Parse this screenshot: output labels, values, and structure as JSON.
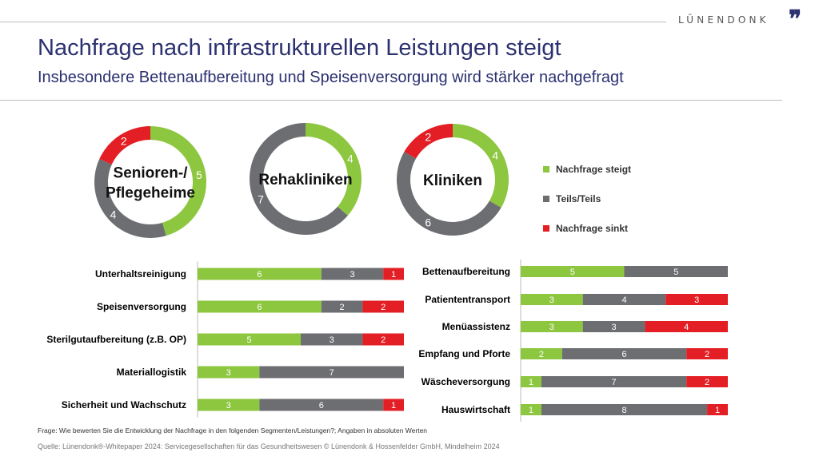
{
  "header": {
    "brand": "LÜNENDONK",
    "brand_mark": "❞",
    "title": "Nachfrage nach infrastrukturellen Leistungen steigt",
    "subtitle": "Insbesondere Bettenaufbereitung und Speisenversorgung wird stärker nachgefragt"
  },
  "colors": {
    "steigt": "#8dc63f",
    "teils": "#6d6e71",
    "sinkt": "#e31e24"
  },
  "legend": [
    {
      "key": "steigt",
      "label": "Nachfrage steigt"
    },
    {
      "key": "teils",
      "label": "Teils/Teils"
    },
    {
      "key": "sinkt",
      "label": "Nachfrage sinkt"
    }
  ],
  "chart_data": [
    {
      "type": "pie",
      "title": "Senioren-/ Pflegeheime",
      "title_lines": [
        "Senioren-/",
        "Pflegeheime"
      ],
      "slices": [
        {
          "key": "steigt",
          "label": "Nachfrage steigt",
          "value": 5
        },
        {
          "key": "teils",
          "label": "Teils/Teils",
          "value": 4
        },
        {
          "key": "sinkt",
          "label": "Nachfrage sinkt",
          "value": 2
        }
      ]
    },
    {
      "type": "pie",
      "title": "Rehakliniken",
      "title_lines": [
        "Rehakliniken"
      ],
      "slices": [
        {
          "key": "steigt",
          "label": "Nachfrage steigt",
          "value": 4
        },
        {
          "key": "teils",
          "label": "Teils/Teils",
          "value": 7
        }
      ]
    },
    {
      "type": "pie",
      "title": "Kliniken",
      "title_lines": [
        "Kliniken"
      ],
      "slices": [
        {
          "key": "steigt",
          "label": "Nachfrage steigt",
          "value": 4
        },
        {
          "key": "teils",
          "label": "Teils/Teils",
          "value": 6
        },
        {
          "key": "sinkt",
          "label": "Nachfrage sinkt",
          "value": 2
        }
      ]
    },
    {
      "type": "bar",
      "stacked": true,
      "orientation": "horizontal",
      "categories": [
        "Unterhaltsreinigung",
        "Speisenversorgung",
        "Sterilgutaufbereitung (z.B. OP)",
        "Materiallogistik",
        "Sicherheit und Wachschutz"
      ],
      "series": [
        {
          "name": "Nachfrage steigt",
          "key": "steigt",
          "values": [
            6,
            6,
            5,
            3,
            3
          ]
        },
        {
          "name": "Teils/Teils",
          "key": "teils",
          "values": [
            3,
            2,
            3,
            7,
            6
          ]
        },
        {
          "name": "Nachfrage sinkt",
          "key": "sinkt",
          "values": [
            1,
            2,
            2,
            0,
            1
          ]
        }
      ]
    },
    {
      "type": "bar",
      "stacked": true,
      "orientation": "horizontal",
      "categories": [
        "Bettenaufbereitung",
        "Patiententransport",
        "Menüassistenz",
        "Empfang und Pforte",
        "Wäscheversorgung",
        "Hauswirtschaft"
      ],
      "series": [
        {
          "name": "Nachfrage steigt",
          "key": "steigt",
          "values": [
            5,
            3,
            3,
            2,
            1,
            1
          ]
        },
        {
          "name": "Teils/Teils",
          "key": "teils",
          "values": [
            5,
            4,
            3,
            6,
            7,
            8
          ]
        },
        {
          "name": "Nachfrage sinkt",
          "key": "sinkt",
          "values": [
            0,
            3,
            4,
            2,
            2,
            1
          ]
        }
      ]
    }
  ],
  "footer": {
    "question": "Frage: Wie bewerten Sie die Entwicklung der Nachfrage in den folgenden Segmenten/Leistungen?; Angaben in absoluten Werten",
    "source": "Quelle: Lünendonk®-Whitepaper 2024: Servicegesellschaften für das Gesundheitswesen © Lünendonk & Hossenfelder GmbH, Mindelheim 2024"
  }
}
